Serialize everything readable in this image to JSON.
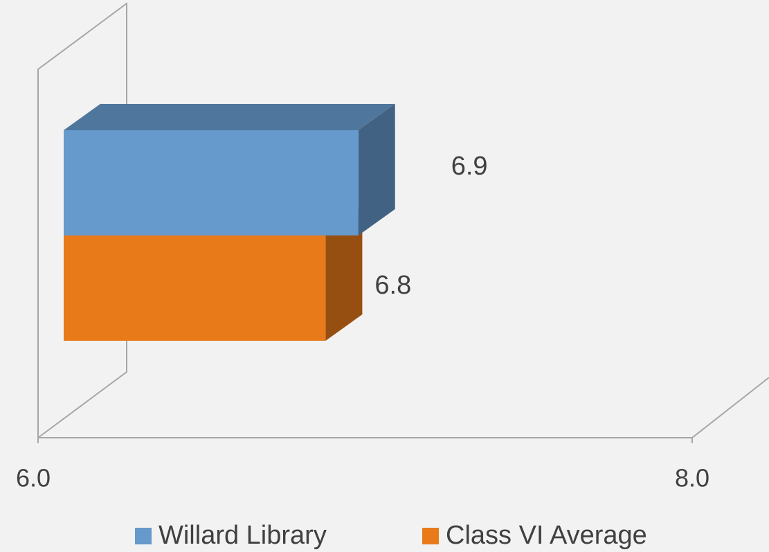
{
  "chart_data": {
    "type": "bar",
    "orientation": "horizontal",
    "categories": [
      null
    ],
    "series": [
      {
        "name": "Willard Library",
        "color": "#6699cc",
        "values": [
          6.9
        ]
      },
      {
        "name": "Class VI Average",
        "color": "#e87a1a",
        "values": [
          6.8
        ]
      }
    ],
    "xlim": [
      6,
      8
    ],
    "xticks": [
      {
        "value": 6,
        "label": "6.0"
      },
      {
        "value": 8,
        "label": "8.0"
      }
    ],
    "legend": "bottom"
  }
}
